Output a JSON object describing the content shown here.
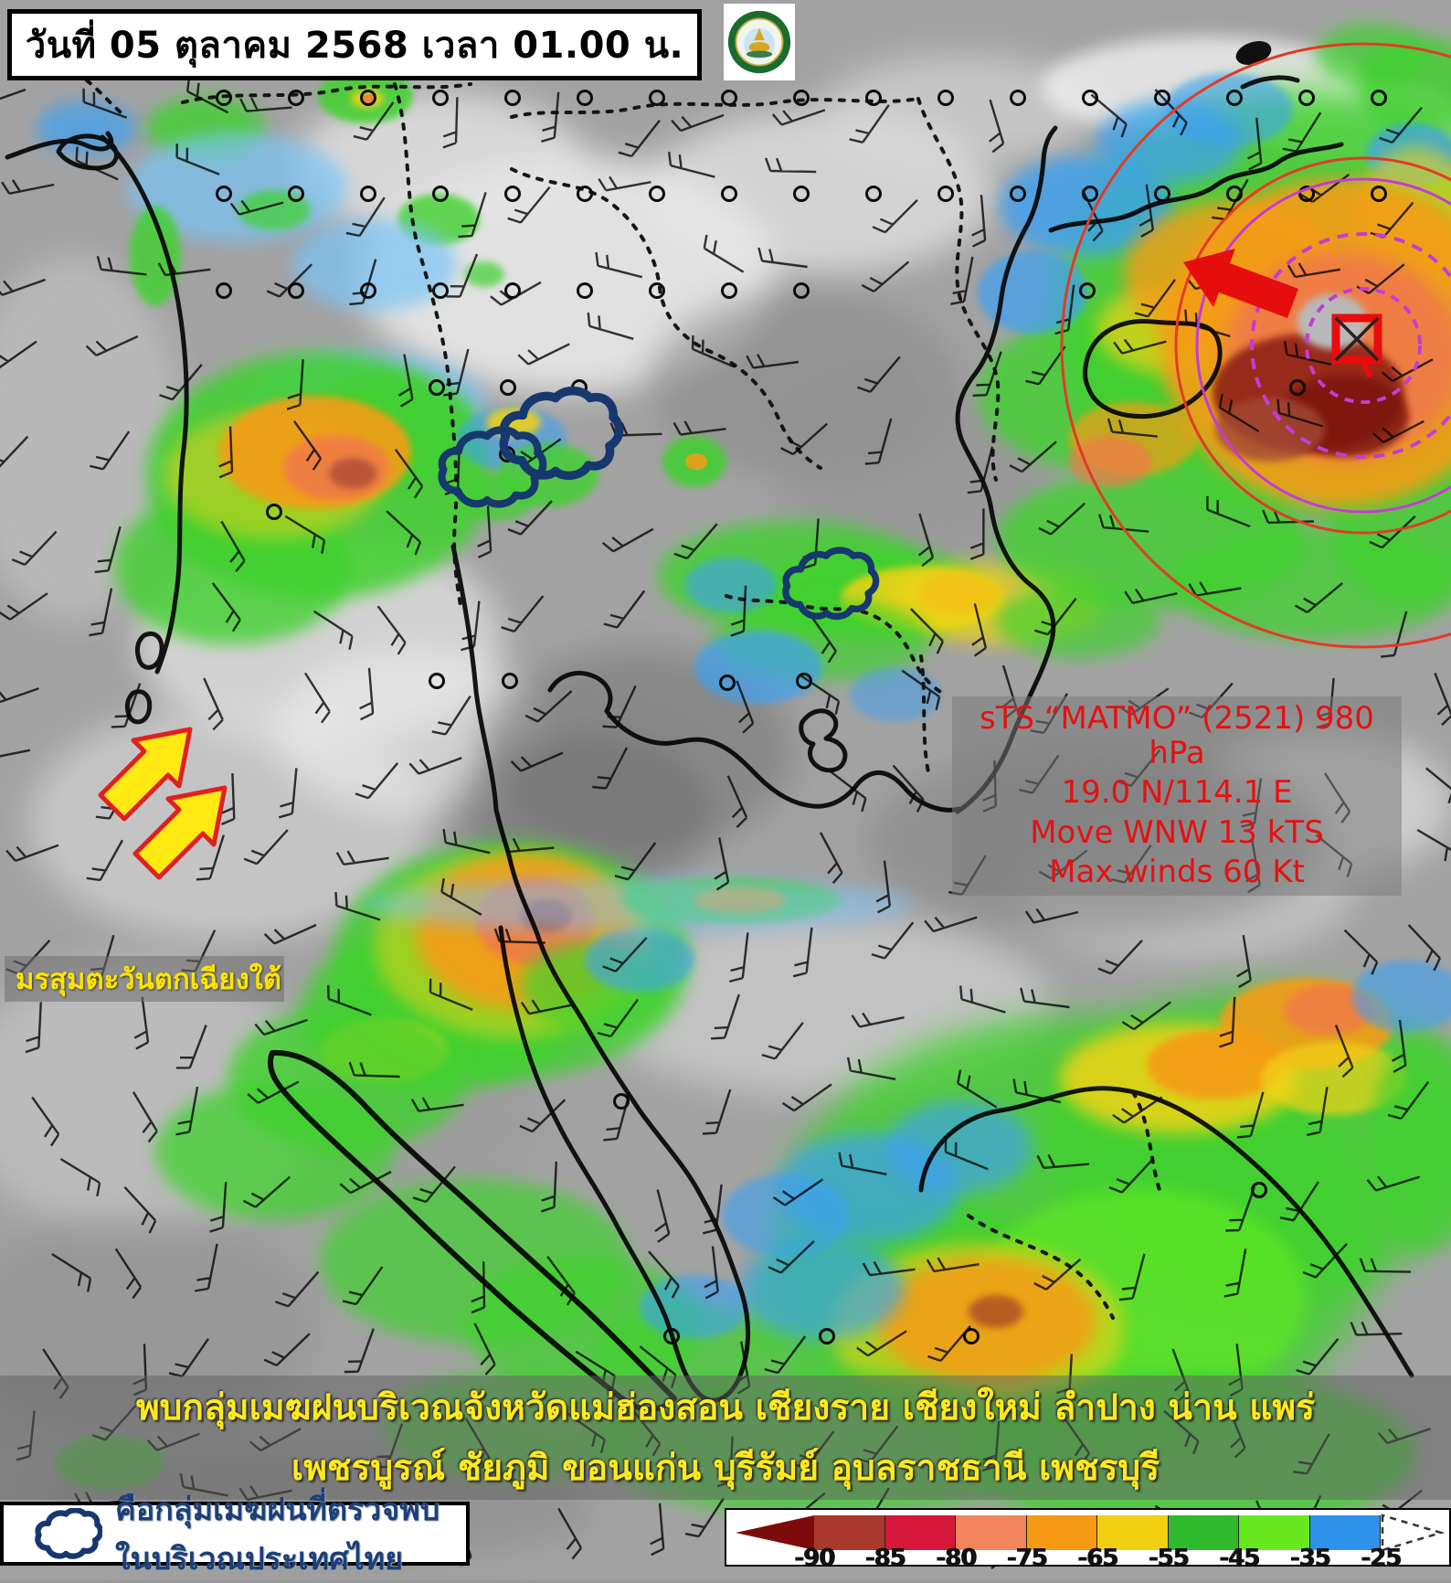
{
  "header": {
    "date_label": "วันที่ 05 ตุลาคม 2568 เวลา 01.00 น.",
    "agency_logo": "thai-meteorological-department-emblem"
  },
  "storm_info": {
    "line1": "sTS “MATMO” (2521) 980 hPa",
    "line2": "19.0 N/114.1 E",
    "line3": "Move WNW 13 kTS",
    "line4": "Max winds 60 Kt",
    "text_color": "#e81010"
  },
  "annotations": {
    "monsoon_label": "มรสุมตะวันตกเฉียงใต้",
    "bottom_line1": "พบกลุ่มเมฆฝนบริเวณจังหวัดแม่ฮ่องสอน เชียงราย เชียงใหม่ ลำปาง น่าน แพร่",
    "bottom_line2": "เพชรบูรณ์ ชัยภูมิ ขอนแก่น บุรีรัมย์ อุบลราชธานี เพชรบุรี"
  },
  "legend": {
    "cloud_note": "คือกลุ่มเมฆฝนที่ตรวจพบในบริเวณประเทศไทย",
    "scale": {
      "tick_labels": [
        "-90",
        "-85",
        "-80",
        "-75",
        "-65",
        "-55",
        "-45",
        "-35",
        "-25"
      ],
      "cell_colors": [
        "#a8392c",
        "#d6173c",
        "#f2855c",
        "#f59a12",
        "#f0d011",
        "#2eba2c",
        "#68e81e",
        "#2e92ea"
      ],
      "left_arrow_color": "#7d0a0a"
    }
  },
  "colors": {
    "monsoon_label_text": "#ffe400",
    "bottom_band_text": "#ffe91e",
    "legend_note_text": "#1c3f77",
    "overlay_box": "rgba(120,120,120,0.52)",
    "storm_track_circle": "#e23b25",
    "storm_radius_circle": "#c53bd6",
    "detected_cloud_outline": "#16386e"
  }
}
